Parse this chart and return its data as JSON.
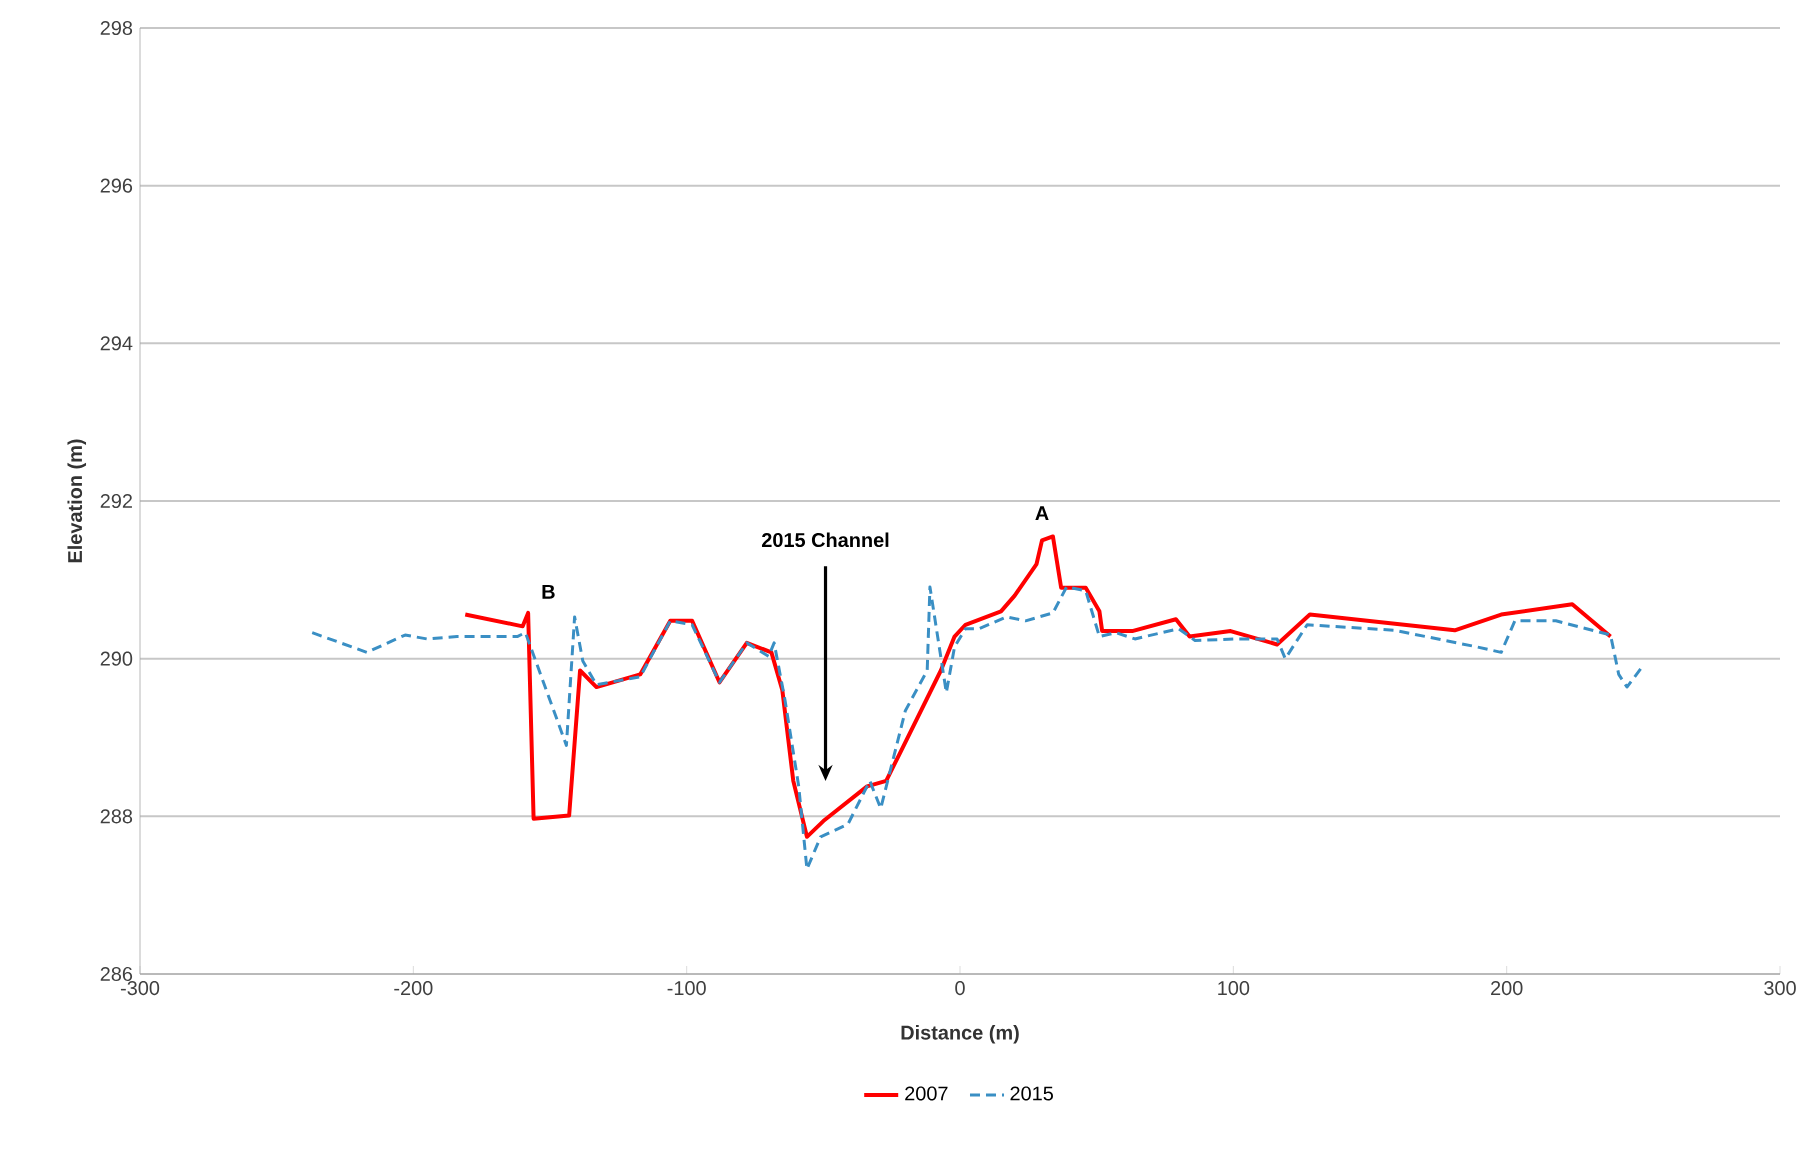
{
  "chart_data": {
    "type": "line",
    "xlabel": "Distance (m)",
    "ylabel": "Elevation (m)",
    "xlim": [
      -300,
      300
    ],
    "xticks": [
      -300,
      -200,
      -100,
      0,
      100,
      200,
      300
    ],
    "ylim": [
      286,
      298
    ],
    "yticks": [
      286,
      288,
      290,
      292,
      294,
      296,
      298
    ],
    "grid": "y",
    "legend": "bottom",
    "marker": "none",
    "annotations": [
      "2015 Channel",
      {
        "text": "A",
        "x": 30,
        "y": 291.55
      },
      "B"
    ],
    "series": [
      {
        "name": "2007",
        "color": "#ff0000",
        "line_style": "solid",
        "x": [
          -181,
          -160,
          -158,
          -156,
          -143,
          -139,
          -133,
          -117,
          -106,
          -98,
          -88,
          -78,
          -69,
          -65,
          -61,
          -56,
          -50,
          -34,
          -27,
          -22,
          -7,
          -2,
          2,
          15,
          20,
          28,
          30,
          34,
          37,
          46,
          51,
          52,
          63,
          79,
          84,
          99,
          116,
          128,
          181,
          198,
          224,
          238
        ],
        "values": [
          290.56,
          290.41,
          290.58,
          287.97,
          288.01,
          289.85,
          289.64,
          289.8,
          290.48,
          290.48,
          289.7,
          290.2,
          290.08,
          289.6,
          288.45,
          287.74,
          287.94,
          288.38,
          288.45,
          288.8,
          289.85,
          290.28,
          290.43,
          290.6,
          290.8,
          291.2,
          291.5,
          291.55,
          290.9,
          290.9,
          290.6,
          290.35,
          290.35,
          290.5,
          290.28,
          290.35,
          290.18,
          290.56,
          290.36,
          290.56,
          290.69,
          290.28
        ]
      },
      {
        "name": "2015",
        "color": "#3a8fc4",
        "line_style": "dashed",
        "x": [
          -237,
          -217,
          -203,
          -195,
          -184,
          -162,
          -159,
          -144,
          -141,
          -138,
          -133,
          -117,
          -106,
          -98,
          -88,
          -78,
          -70,
          -68,
          -64,
          -59,
          -56,
          -51,
          -41,
          -33,
          -29,
          -20,
          -12,
          -11,
          -5,
          -2,
          2,
          7,
          17,
          24,
          34,
          39,
          46,
          51,
          57,
          64,
          80,
          86,
          101,
          116,
          119,
          127,
          159,
          189,
          198,
          203,
          218,
          238,
          241,
          244,
          249
        ],
        "values": [
          290.33,
          290.08,
          290.3,
          290.25,
          290.28,
          290.28,
          290.33,
          288.9,
          290.53,
          289.97,
          289.67,
          289.77,
          290.48,
          290.43,
          289.7,
          290.2,
          290.03,
          290.2,
          289.47,
          288.38,
          287.33,
          287.74,
          287.9,
          288.45,
          288.1,
          289.34,
          289.85,
          290.91,
          289.57,
          290.15,
          290.38,
          290.38,
          290.53,
          290.48,
          290.58,
          290.91,
          290.86,
          290.28,
          290.33,
          290.25,
          290.38,
          290.23,
          290.25,
          290.25,
          290.0,
          290.43,
          290.36,
          290.15,
          290.08,
          290.48,
          290.48,
          290.3,
          289.8,
          289.64,
          289.87
        ]
      }
    ]
  }
}
